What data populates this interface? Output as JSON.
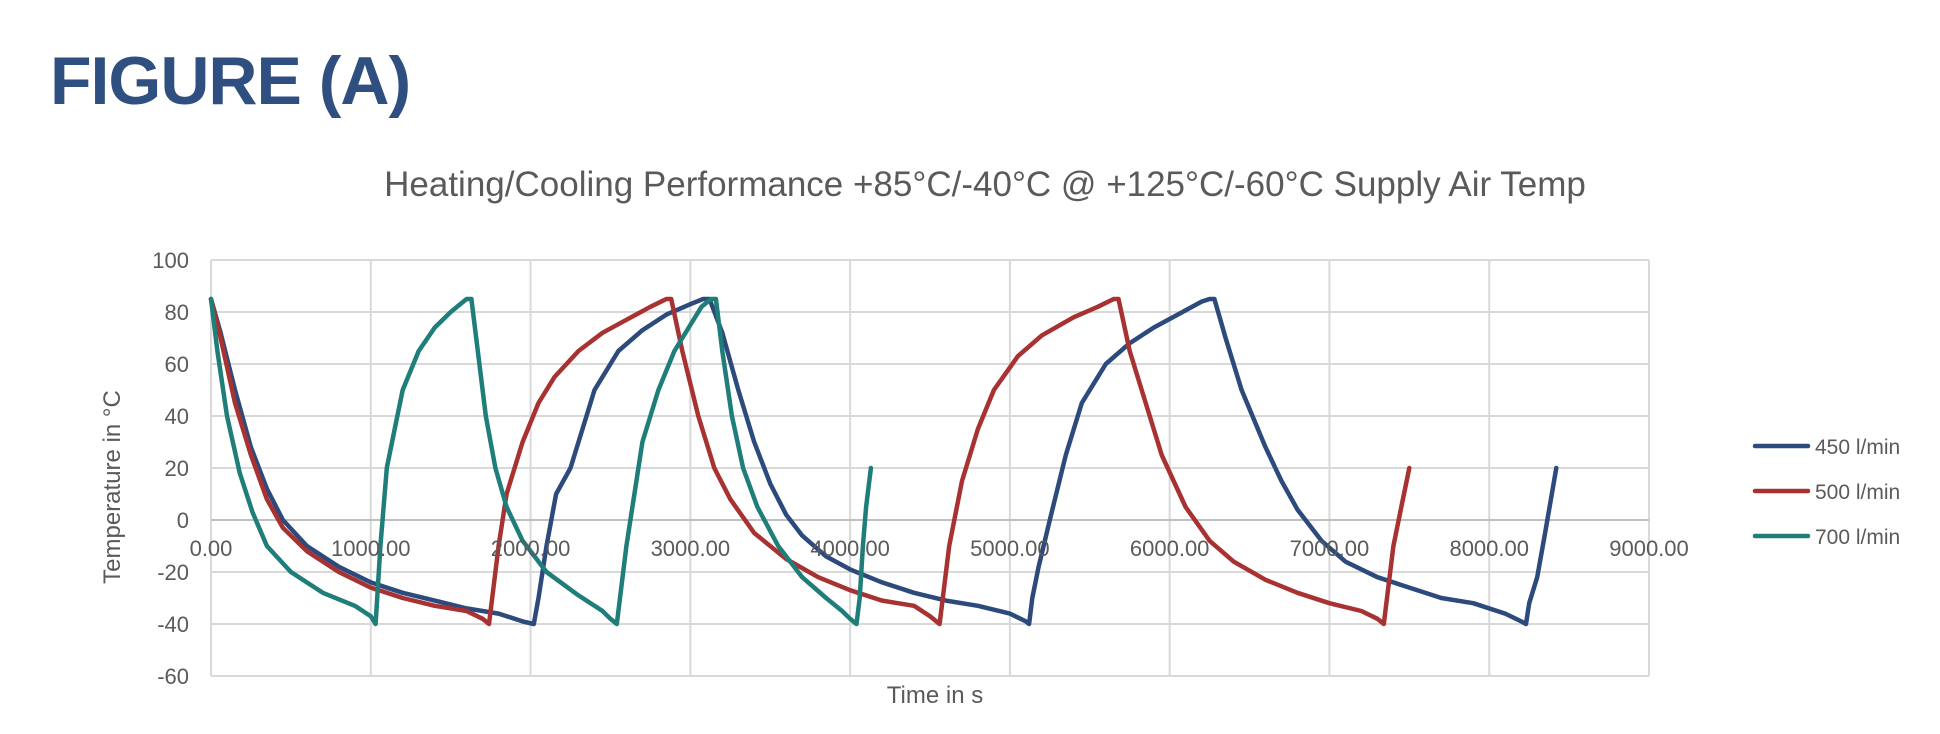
{
  "figure_label": "FIGURE (A)",
  "chart_data": {
    "type": "line",
    "title": "Heating/Cooling Performance +85°C/-40°C @ +125°C/-60°C Supply Air Temp",
    "xlabel": "Time in s",
    "ylabel": "Temperature in °C",
    "xlim": [
      0,
      9000
    ],
    "ylim": [
      -60,
      100
    ],
    "x_ticks": [
      0,
      1000,
      2000,
      3000,
      4000,
      5000,
      6000,
      7000,
      8000,
      9000
    ],
    "x_tick_labels": [
      "0.00",
      "1000.00",
      "2000.00",
      "3000.00",
      "4000.00",
      "5000.00",
      "6000.00",
      "7000.00",
      "8000.00",
      "9000.00"
    ],
    "y_ticks": [
      -60,
      -40,
      -20,
      0,
      20,
      40,
      60,
      80,
      100
    ],
    "y_tick_labels": [
      "-60",
      "-40",
      "-20",
      "0",
      "20",
      "40",
      "60",
      "80",
      "100"
    ],
    "grid": true,
    "legend_position": "right",
    "series": [
      {
        "name": "450 l/min",
        "color": "#2c4a7c",
        "points": [
          [
            0,
            85
          ],
          [
            60,
            72
          ],
          [
            150,
            50
          ],
          [
            250,
            28
          ],
          [
            350,
            12
          ],
          [
            450,
            0
          ],
          [
            600,
            -10
          ],
          [
            800,
            -18
          ],
          [
            1000,
            -24
          ],
          [
            1200,
            -28
          ],
          [
            1400,
            -31
          ],
          [
            1600,
            -34
          ],
          [
            1800,
            -36
          ],
          [
            1950,
            -39
          ],
          [
            2020,
            -40
          ],
          [
            2050,
            -30
          ],
          [
            2100,
            -10
          ],
          [
            2160,
            10
          ],
          [
            2250,
            20
          ],
          [
            2300,
            30
          ],
          [
            2400,
            50
          ],
          [
            2550,
            65
          ],
          [
            2700,
            73
          ],
          [
            2850,
            79
          ],
          [
            3000,
            83
          ],
          [
            3080,
            85
          ],
          [
            3120,
            85
          ],
          [
            3200,
            72
          ],
          [
            3300,
            50
          ],
          [
            3400,
            30
          ],
          [
            3500,
            14
          ],
          [
            3600,
            2
          ],
          [
            3700,
            -6
          ],
          [
            3850,
            -14
          ],
          [
            4000,
            -19
          ],
          [
            4200,
            -24
          ],
          [
            4400,
            -28
          ],
          [
            4600,
            -31
          ],
          [
            4800,
            -33
          ],
          [
            5000,
            -36
          ],
          [
            5100,
            -39
          ],
          [
            5120,
            -40
          ],
          [
            5140,
            -30
          ],
          [
            5180,
            -18
          ],
          [
            5250,
            0
          ],
          [
            5350,
            25
          ],
          [
            5450,
            45
          ],
          [
            5600,
            60
          ],
          [
            5750,
            68
          ],
          [
            5900,
            74
          ],
          [
            6050,
            79
          ],
          [
            6200,
            84
          ],
          [
            6250,
            85
          ],
          [
            6280,
            85
          ],
          [
            6350,
            70
          ],
          [
            6450,
            50
          ],
          [
            6600,
            28
          ],
          [
            6700,
            15
          ],
          [
            6800,
            4
          ],
          [
            6950,
            -8
          ],
          [
            7100,
            -16
          ],
          [
            7300,
            -22
          ],
          [
            7500,
            -26
          ],
          [
            7700,
            -30
          ],
          [
            7900,
            -32
          ],
          [
            8100,
            -36
          ],
          [
            8200,
            -39
          ],
          [
            8230,
            -40
          ],
          [
            8250,
            -32
          ],
          [
            8300,
            -22
          ],
          [
            8350,
            -5
          ],
          [
            8420,
            20
          ]
        ]
      },
      {
        "name": "500 l/min",
        "color": "#a83232",
        "points": [
          [
            0,
            85
          ],
          [
            60,
            70
          ],
          [
            150,
            45
          ],
          [
            250,
            25
          ],
          [
            350,
            8
          ],
          [
            450,
            -3
          ],
          [
            600,
            -12
          ],
          [
            800,
            -20
          ],
          [
            1000,
            -26
          ],
          [
            1200,
            -30
          ],
          [
            1400,
            -33
          ],
          [
            1600,
            -35
          ],
          [
            1700,
            -38
          ],
          [
            1740,
            -40
          ],
          [
            1760,
            -30
          ],
          [
            1800,
            -10
          ],
          [
            1850,
            10
          ],
          [
            1950,
            30
          ],
          [
            2050,
            45
          ],
          [
            2150,
            55
          ],
          [
            2300,
            65
          ],
          [
            2450,
            72
          ],
          [
            2600,
            77
          ],
          [
            2750,
            82
          ],
          [
            2850,
            85
          ],
          [
            2880,
            85
          ],
          [
            2950,
            65
          ],
          [
            3050,
            40
          ],
          [
            3150,
            20
          ],
          [
            3250,
            8
          ],
          [
            3400,
            -5
          ],
          [
            3600,
            -15
          ],
          [
            3800,
            -22
          ],
          [
            4000,
            -27
          ],
          [
            4200,
            -31
          ],
          [
            4400,
            -33
          ],
          [
            4500,
            -37
          ],
          [
            4560,
            -40
          ],
          [
            4580,
            -30
          ],
          [
            4620,
            -10
          ],
          [
            4700,
            15
          ],
          [
            4800,
            35
          ],
          [
            4900,
            50
          ],
          [
            5050,
            63
          ],
          [
            5200,
            71
          ],
          [
            5400,
            78
          ],
          [
            5550,
            82
          ],
          [
            5650,
            85
          ],
          [
            5680,
            85
          ],
          [
            5750,
            65
          ],
          [
            5850,
            45
          ],
          [
            5950,
            25
          ],
          [
            6100,
            5
          ],
          [
            6250,
            -8
          ],
          [
            6400,
            -16
          ],
          [
            6600,
            -23
          ],
          [
            6800,
            -28
          ],
          [
            7000,
            -32
          ],
          [
            7200,
            -35
          ],
          [
            7300,
            -38
          ],
          [
            7340,
            -40
          ],
          [
            7360,
            -30
          ],
          [
            7400,
            -10
          ],
          [
            7450,
            5
          ],
          [
            7500,
            20
          ]
        ]
      },
      {
        "name": "700 l/min",
        "color": "#1f7d7a",
        "points": [
          [
            0,
            85
          ],
          [
            40,
            65
          ],
          [
            100,
            40
          ],
          [
            180,
            18
          ],
          [
            260,
            3
          ],
          [
            350,
            -10
          ],
          [
            500,
            -20
          ],
          [
            700,
            -28
          ],
          [
            900,
            -33
          ],
          [
            1000,
            -37
          ],
          [
            1030,
            -40
          ],
          [
            1040,
            -30
          ],
          [
            1060,
            -10
          ],
          [
            1080,
            5
          ],
          [
            1100,
            20
          ],
          [
            1150,
            35
          ],
          [
            1200,
            50
          ],
          [
            1300,
            65
          ],
          [
            1400,
            74
          ],
          [
            1500,
            80
          ],
          [
            1600,
            85
          ],
          [
            1630,
            85
          ],
          [
            1670,
            65
          ],
          [
            1720,
            40
          ],
          [
            1780,
            20
          ],
          [
            1850,
            5
          ],
          [
            1950,
            -8
          ],
          [
            2100,
            -20
          ],
          [
            2300,
            -29
          ],
          [
            2450,
            -35
          ],
          [
            2500,
            -38
          ],
          [
            2540,
            -40
          ],
          [
            2560,
            -30
          ],
          [
            2600,
            -10
          ],
          [
            2650,
            10
          ],
          [
            2700,
            30
          ],
          [
            2800,
            50
          ],
          [
            2900,
            65
          ],
          [
            3000,
            75
          ],
          [
            3070,
            82
          ],
          [
            3130,
            85
          ],
          [
            3160,
            85
          ],
          [
            3200,
            65
          ],
          [
            3260,
            40
          ],
          [
            3330,
            20
          ],
          [
            3420,
            5
          ],
          [
            3550,
            -10
          ],
          [
            3700,
            -22
          ],
          [
            3850,
            -30
          ],
          [
            3950,
            -35
          ],
          [
            4000,
            -38
          ],
          [
            4040,
            -40
          ],
          [
            4060,
            -30
          ],
          [
            4080,
            -10
          ],
          [
            4100,
            5
          ],
          [
            4130,
            20
          ]
        ]
      }
    ]
  }
}
